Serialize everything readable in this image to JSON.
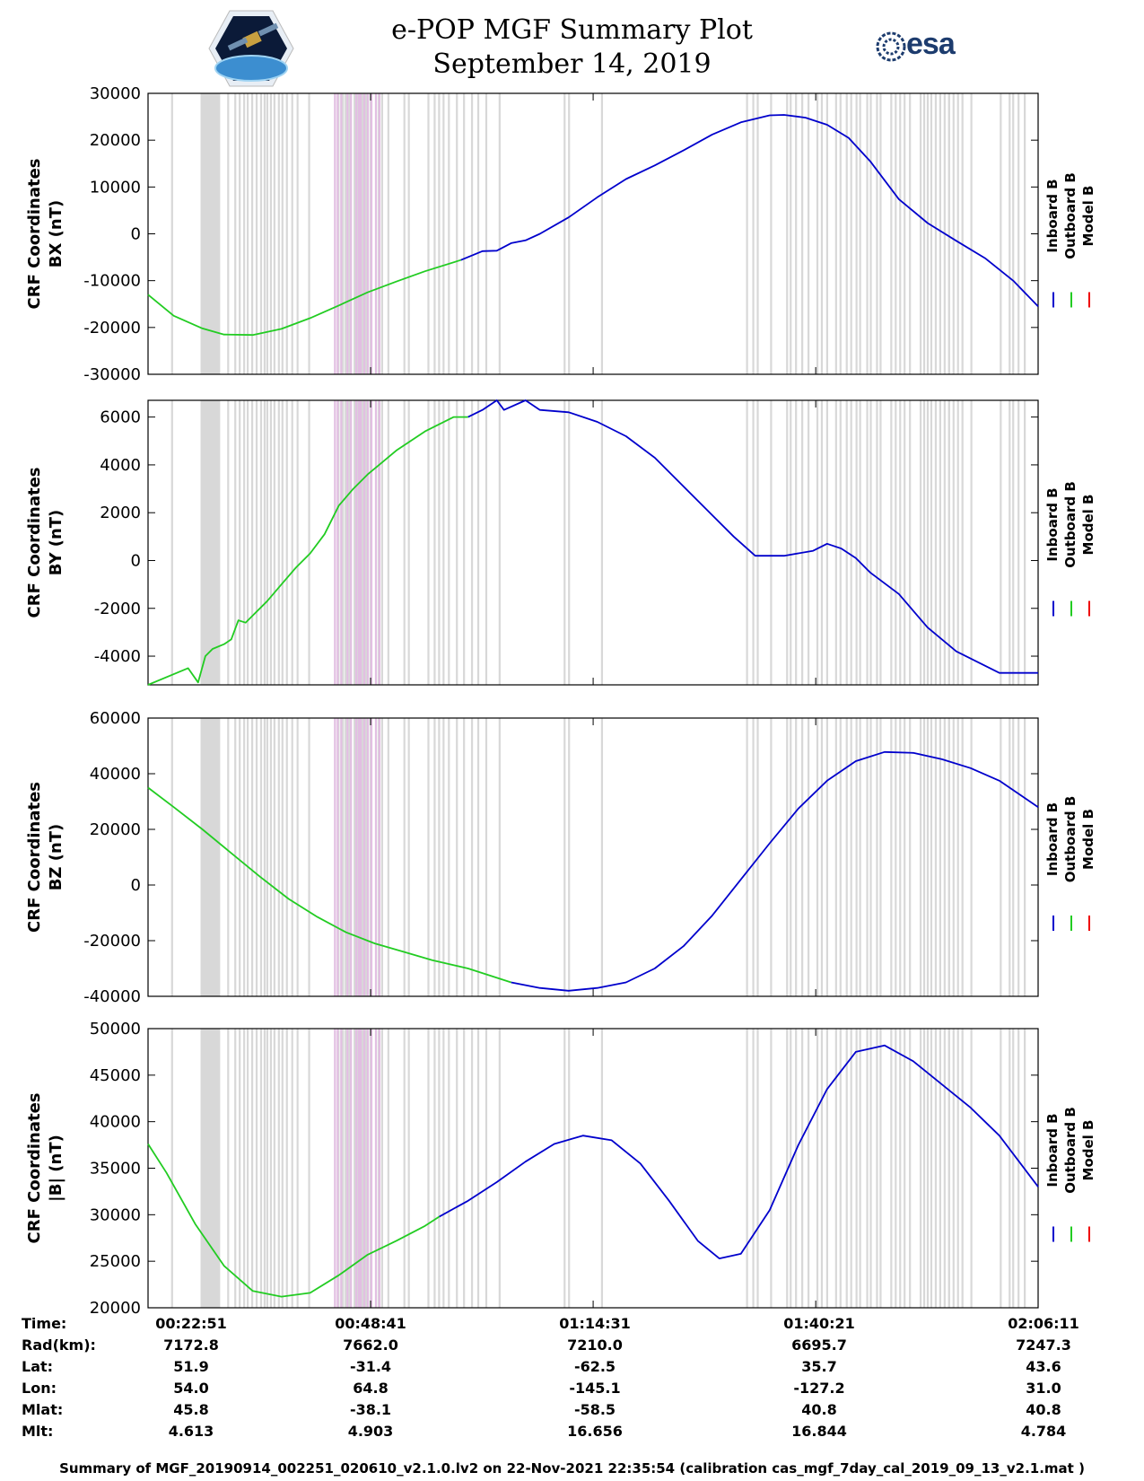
{
  "header": {
    "title_line1": "e-POP MGF Summary Plot",
    "title_line2": "September 14, 2019",
    "logo_left": "cassiope-logo",
    "logo_right_text": "esa"
  },
  "colors": {
    "inboard": "#0000cc",
    "outboard": "#22cc22",
    "model": "#ee0000",
    "gap_gray": "#d8d8d8",
    "gap_pink": "#e2bfe2"
  },
  "legend": [
    "Inboard B",
    "Outboard B",
    "Model B"
  ],
  "time_axis": {
    "min_s": 1371,
    "max_s": 7570,
    "ticks_s": [
      1371,
      2921,
      4471,
      6021,
      7571
    ]
  },
  "chart_data": [
    {
      "type": "line",
      "name": "BX",
      "ylabel_line1": "CRF Coordinates",
      "ylabel_line2": "BX (nT)",
      "ylim": [
        -30000,
        30000
      ],
      "yticks": [
        30000,
        20000,
        10000,
        0,
        -10000,
        -20000,
        -30000
      ],
      "ytick_labels": [
        "30000",
        "20000",
        "10000",
        "0",
        "-10000",
        "-20000",
        "-30000"
      ],
      "series": [
        {
          "name": "Outboard B",
          "x": [
            1371,
            1550,
            1750,
            1900,
            2100,
            2300,
            2500,
            2700,
            2900,
            3100,
            3300,
            3550
          ],
          "values": [
            -13000,
            -17500,
            -20200,
            -21500,
            -21600,
            -20300,
            -18000,
            -15300,
            -12500,
            -10200,
            -8000,
            -5600
          ]
        },
        {
          "name": "Inboard B",
          "x": [
            3550,
            3700,
            3800,
            3900,
            4000,
            4100,
            4300,
            4500,
            4700,
            4900,
            5100,
            5300,
            5500,
            5700,
            5800,
            5950,
            6100,
            6250,
            6400,
            6600,
            6800,
            7000,
            7200,
            7400,
            7570
          ],
          "values": [
            -5600,
            -3700,
            -3600,
            -2000,
            -1400,
            0,
            3500,
            7800,
            11700,
            14600,
            17800,
            21200,
            23800,
            25300,
            25400,
            24800,
            23300,
            20500,
            15500,
            7400,
            2300,
            -1500,
            -5200,
            -10100,
            -15500
          ]
        }
      ]
    },
    {
      "type": "line",
      "name": "BY",
      "ylabel_line1": "CRF Coordinates",
      "ylabel_line2": "BY (nT)",
      "ylim": [
        -5200,
        6700
      ],
      "yticks": [
        6000,
        4000,
        2000,
        0,
        -2000,
        -4000
      ],
      "ytick_labels": [
        "6000",
        "4000",
        "2000",
        "0",
        "-2000",
        "-4000"
      ],
      "series": [
        {
          "name": "Outboard B",
          "x": [
            1371,
            1650,
            1720,
            1770,
            1820,
            1900,
            1950,
            2000,
            2050,
            2100,
            2200,
            2300,
            2400,
            2500,
            2600,
            2700,
            2800,
            2900,
            3000,
            3100,
            3200,
            3300,
            3400,
            3500,
            3600
          ],
          "values": [
            -5200,
            -4500,
            -5100,
            -4000,
            -3700,
            -3500,
            -3300,
            -2500,
            -2600,
            -2300,
            -1700,
            -1000,
            -300,
            300,
            1100,
            2300,
            3000,
            3600,
            4100,
            4600,
            5000,
            5400,
            5700,
            6000,
            6000
          ]
        },
        {
          "name": "Inboard B",
          "x": [
            3600,
            3700,
            3800,
            3850,
            4000,
            4100,
            4300,
            4500,
            4700,
            4900,
            5100,
            5300,
            5450,
            5600,
            5800,
            6000,
            6100,
            6200,
            6300,
            6400,
            6600,
            6800,
            7000,
            7200,
            7300,
            7400,
            7570
          ],
          "values": [
            6000,
            6300,
            6700,
            6300,
            6700,
            6300,
            6200,
            5800,
            5200,
            4300,
            3100,
            1900,
            1000,
            200,
            200,
            400,
            700,
            500,
            100,
            -500,
            -1400,
            -2800,
            -3800,
            -4400,
            -4700,
            -4700,
            -4700
          ]
        }
      ]
    },
    {
      "type": "line",
      "name": "BZ",
      "ylabel_line1": "CRF Coordinates",
      "ylabel_line2": "BZ (nT)",
      "ylim": [
        -40000,
        60000
      ],
      "yticks": [
        60000,
        40000,
        20000,
        0,
        -20000,
        -40000
      ],
      "ytick_labels": [
        "60000",
        "40000",
        "20000",
        "0",
        "-20000",
        "-40000"
      ],
      "series": [
        {
          "name": "Outboard B",
          "x": [
            1371,
            1550,
            1750,
            1950,
            2150,
            2350,
            2550,
            2750,
            2950,
            3150,
            3350,
            3600,
            3900
          ],
          "values": [
            35000,
            28000,
            20000,
            11500,
            3000,
            -5000,
            -11500,
            -17000,
            -21000,
            -24000,
            -27000,
            -30000,
            -35000
          ]
        },
        {
          "name": "Inboard B",
          "x": [
            3900,
            4100,
            4300,
            4500,
            4700,
            4900,
            5100,
            5300,
            5500,
            5700,
            5900,
            6100,
            6300,
            6500,
            6700,
            6900,
            7100,
            7300,
            7570
          ],
          "values": [
            -35000,
            -37000,
            -38000,
            -37000,
            -35000,
            -30000,
            -22000,
            -11000,
            2000,
            15000,
            27500,
            37500,
            44500,
            47800,
            47500,
            45200,
            42000,
            37500,
            28000
          ]
        }
      ]
    },
    {
      "type": "line",
      "name": "|B|",
      "ylabel_line1": "CRF Coordinates",
      "ylabel_line2": "|B| (nT)",
      "ylim": [
        20000,
        50000
      ],
      "yticks": [
        50000,
        45000,
        40000,
        35000,
        30000,
        25000,
        20000
      ],
      "ytick_labels": [
        "50000",
        "45000",
        "40000",
        "35000",
        "30000",
        "25000",
        "20000"
      ],
      "series": [
        {
          "name": "Outboard B",
          "x": [
            1371,
            1500,
            1700,
            1900,
            2100,
            2300,
            2500,
            2700,
            2900,
            3100,
            3300,
            3400
          ],
          "values": [
            37600,
            34500,
            29000,
            24500,
            21800,
            21200,
            21600,
            23500,
            25700,
            27200,
            28800,
            29800
          ]
        },
        {
          "name": "Inboard B",
          "x": [
            3400,
            3600,
            3800,
            4000,
            4200,
            4400,
            4600,
            4800,
            5000,
            5200,
            5350,
            5500,
            5700,
            5900,
            6100,
            6300,
            6500,
            6700,
            6900,
            7100,
            7300,
            7570
          ],
          "values": [
            29800,
            31500,
            33500,
            35700,
            37600,
            38500,
            38000,
            35500,
            31500,
            27200,
            25300,
            25800,
            30500,
            37500,
            43500,
            47500,
            48200,
            46500,
            44000,
            41500,
            38500,
            33000
          ]
        }
      ]
    }
  ],
  "table": {
    "row_labels": [
      "Time:",
      "Rad(km):",
      "Lat:",
      "Lon:",
      "Mlat:",
      "Mlt:"
    ],
    "columns": [
      [
        "00:22:51",
        "7172.8",
        "51.9",
        "54.0",
        "45.8",
        "4.613"
      ],
      [
        "00:48:41",
        "7662.0",
        "-31.4",
        "64.8",
        "-38.1",
        "4.903"
      ],
      [
        "01:14:31",
        "7210.0",
        "-62.5",
        "-145.1",
        "-58.5",
        "16.656"
      ],
      [
        "01:40:21",
        "6695.7",
        "35.7",
        "-127.2",
        "40.8",
        "16.844"
      ],
      [
        "02:06:11",
        "7247.3",
        "43.6",
        "31.0",
        "40.8",
        "4.784"
      ]
    ]
  },
  "footer": "Summary of MGF_20190914_002251_020610_v2.1.0.lv2 on 22-Nov-2021 22:35:54 (calibration cas_mgf_7day_cal_2019_09_13_v2.1.mat )"
}
